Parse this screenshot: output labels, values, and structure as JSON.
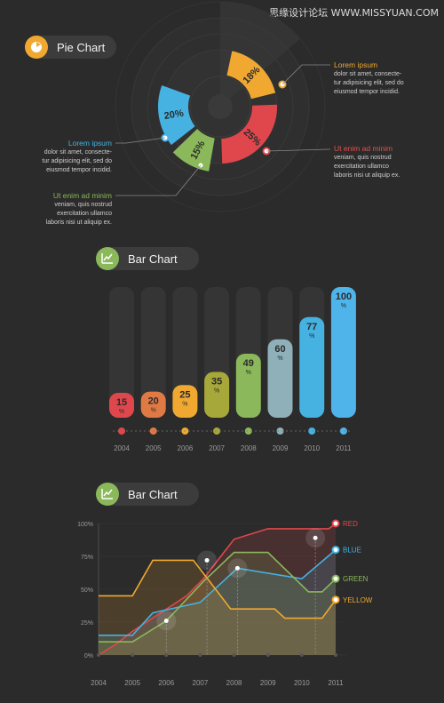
{
  "watermark": "思缘设计论坛 WWW.MISSYUAN.COM",
  "sections": {
    "pie": "Pie Chart",
    "bar": "Bar Chart",
    "line": "Bar Chart"
  },
  "callouts": [
    {
      "heading": "Lorem ipsum",
      "lines": [
        "dolor sit amet, consecte-",
        "tur adipisicing elit, sed do",
        "eiusmod tempor incidid."
      ],
      "color": "#f0a830"
    },
    {
      "heading": "Lorem ipsum",
      "lines": [
        "dolor sit amet, consecte-",
        "tur adipisicing elit, sed do",
        "eiusmod tempor incidid."
      ],
      "color": "#45b2e2"
    },
    {
      "heading": "Ut enim ad minim",
      "lines": [
        "veniam, quis nostrud",
        "exercitation ullamco",
        "laboris nisi ut aliquip ex."
      ],
      "color": "#e45050"
    },
    {
      "heading": "Ut enim ad minim",
      "lines": [
        "veniam, quis nostrud",
        "exercitation ullamco",
        "laboris nisi ut aliquip ex."
      ],
      "color": "#8ab85a"
    }
  ],
  "chart_data": [
    {
      "type": "pie",
      "title": "Pie Chart",
      "slices": [
        {
          "value": 18,
          "label": "18%",
          "color": "#f0a830"
        },
        {
          "value": 25,
          "label": "25%",
          "color": "#e0474c"
        },
        {
          "value": 15,
          "label": "15%",
          "color": "#8ab85a"
        },
        {
          "value": 20,
          "label": "20%",
          "color": "#45b2e2"
        }
      ]
    },
    {
      "type": "bar",
      "title": "Bar Chart",
      "categories": [
        "2004",
        "2005",
        "2006",
        "2007",
        "2008",
        "2009",
        "2010",
        "2011"
      ],
      "values": [
        15,
        20,
        25,
        35,
        49,
        60,
        77,
        100
      ],
      "unit": "%",
      "colors": [
        "#e0474c",
        "#e07a45",
        "#f0a830",
        "#a7a83a",
        "#8ab85a",
        "#8fb0b8",
        "#45b2e2",
        "#4fb4ea"
      ],
      "ylim": [
        0,
        100
      ]
    },
    {
      "type": "line",
      "title": "Bar Chart",
      "x": [
        "2004",
        "2005",
        "2006",
        "2007",
        "2008",
        "2009",
        "2010",
        "2011"
      ],
      "yticks": [
        "0%",
        "25%",
        "50%",
        "75%",
        "100%"
      ],
      "ylim": [
        0,
        100
      ],
      "series": [
        {
          "name": "RED",
          "color": "#e0474c",
          "points": [
            [
              2004,
              0
            ],
            [
              2004.5,
              8
            ],
            [
              2005,
              18
            ],
            [
              2006.6,
              45
            ],
            [
              2007.1,
              58
            ],
            [
              2008,
              88
            ],
            [
              2009,
              96
            ],
            [
              2010.8,
              96
            ],
            [
              2011,
              100
            ]
          ]
        },
        {
          "name": "BLUE",
          "color": "#45b2e2",
          "points": [
            [
              2004,
              15
            ],
            [
              2005,
              15
            ],
            [
              2005.6,
              32
            ],
            [
              2007,
              40
            ],
            [
              2008.1,
              66
            ],
            [
              2010,
              58
            ],
            [
              2011,
              80
            ]
          ]
        },
        {
          "name": "GREEN",
          "color": "#8ab85a",
          "points": [
            [
              2004,
              10
            ],
            [
              2005,
              10
            ],
            [
              2006,
              26
            ],
            [
              2007.1,
              56
            ],
            [
              2008,
              78
            ],
            [
              2009,
              78
            ],
            [
              2010.2,
              48
            ],
            [
              2010.6,
              48
            ],
            [
              2011,
              58
            ]
          ]
        },
        {
          "name": "YELLOW",
          "color": "#f0a830",
          "points": [
            [
              2004,
              45
            ],
            [
              2005,
              45
            ],
            [
              2005.6,
              72
            ],
            [
              2006.8,
              72
            ],
            [
              2007.9,
              35
            ],
            [
              2009.2,
              35
            ],
            [
              2009.5,
              28
            ],
            [
              2010.6,
              28
            ],
            [
              2011,
              42
            ]
          ]
        }
      ]
    }
  ]
}
